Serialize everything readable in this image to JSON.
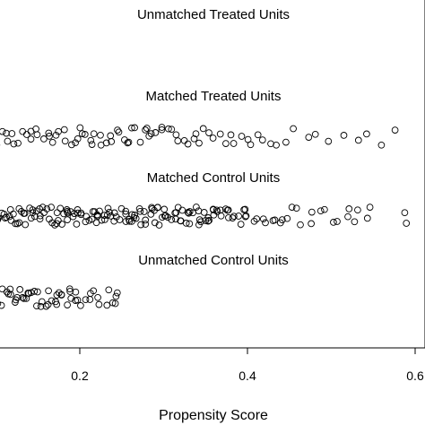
{
  "chart_data": {
    "type": "scatter",
    "title": "",
    "xlabel": "Propensity Score",
    "ylabel": "",
    "xlim": [
      -0.01,
      0.625
    ],
    "xticks": [
      0.2,
      0.4,
      0.6
    ],
    "xtick_labels": [
      "0.2",
      "0.4",
      "0.6"
    ],
    "grid": false,
    "legend": "none",
    "marker": "open-circle",
    "marker_color": "#000000",
    "groups": [
      {
        "label": "Unmatched Treated Units",
        "x": []
      },
      {
        "label": "Matched Treated Units",
        "x": [
          0.005,
          0.01,
          0.018,
          0.026,
          0.033,
          0.04,
          0.047,
          0.053,
          0.06,
          0.066,
          0.072,
          0.078,
          0.083,
          0.088,
          0.093,
          0.098,
          0.103,
          0.108,
          0.112,
          0.116,
          0.12,
          0.124,
          0.128,
          0.132,
          0.136,
          0.14,
          0.144,
          0.148,
          0.152,
          0.156,
          0.16,
          0.164,
          0.168,
          0.172,
          0.176,
          0.18,
          0.184,
          0.188,
          0.192,
          0.196,
          0.2,
          0.204,
          0.208,
          0.212,
          0.216,
          0.22,
          0.224,
          0.228,
          0.232,
          0.236,
          0.24,
          0.244,
          0.248,
          0.252,
          0.256,
          0.26,
          0.264,
          0.268,
          0.272,
          0.276,
          0.28,
          0.284,
          0.288,
          0.292,
          0.296,
          0.3,
          0.305,
          0.31,
          0.315,
          0.32,
          0.325,
          0.33,
          0.335,
          0.34,
          0.345,
          0.35,
          0.356,
          0.362,
          0.368,
          0.374,
          0.38,
          0.386,
          0.392,
          0.398,
          0.404,
          0.41,
          0.418,
          0.426,
          0.434,
          0.445,
          0.455,
          0.47,
          0.48,
          0.495,
          0.515,
          0.53,
          0.545,
          0.56,
          0.575,
          0.62
        ]
      },
      {
        "label": "Matched Control Units",
        "x": [
          0.0,
          0.005,
          0.015,
          0.03,
          0.035,
          0.04,
          0.045,
          0.05,
          0.055,
          0.06,
          0.065,
          0.07,
          0.075,
          0.08,
          0.085,
          0.09,
          0.095,
          0.1,
          0.104,
          0.108,
          0.112,
          0.116,
          0.12,
          0.124,
          0.128,
          0.132,
          0.136,
          0.14,
          0.144,
          0.148,
          0.152,
          0.156,
          0.16,
          0.164,
          0.168,
          0.172,
          0.176,
          0.18,
          0.184,
          0.188,
          0.192,
          0.196,
          0.2,
          0.204,
          0.208,
          0.212,
          0.216,
          0.22,
          0.224,
          0.228,
          0.232,
          0.236,
          0.24,
          0.244,
          0.248,
          0.252,
          0.256,
          0.26,
          0.264,
          0.268,
          0.272,
          0.276,
          0.28,
          0.284,
          0.288,
          0.292,
          0.296,
          0.3,
          0.304,
          0.308,
          0.312,
          0.316,
          0.32,
          0.324,
          0.328,
          0.332,
          0.336,
          0.34,
          0.344,
          0.348,
          0.352,
          0.356,
          0.36,
          0.365,
          0.37,
          0.375,
          0.38,
          0.385,
          0.39,
          0.395,
          0.4,
          0.41,
          0.42,
          0.43,
          0.44,
          0.45,
          0.46,
          0.475,
          0.49,
          0.505,
          0.52,
          0.53,
          0.545,
          0.59
        ]
      },
      {
        "label": "Unmatched Control Units",
        "x": [
          -0.005,
          0.0,
          0.005,
          0.01,
          0.015,
          0.02,
          0.025,
          0.03,
          0.035,
          0.04,
          0.045,
          0.05,
          0.055,
          0.06,
          0.065,
          0.07,
          0.075,
          0.08,
          0.085,
          0.09,
          0.095,
          0.1,
          0.105,
          0.11,
          0.115,
          0.12,
          0.125,
          0.13,
          0.135,
          0.14,
          0.145,
          0.15,
          0.155,
          0.16,
          0.165,
          0.17,
          0.175,
          0.18,
          0.185,
          0.19,
          0.195,
          0.2,
          0.21,
          0.215,
          0.22,
          0.235,
          0.24,
          0.245
        ]
      }
    ]
  }
}
